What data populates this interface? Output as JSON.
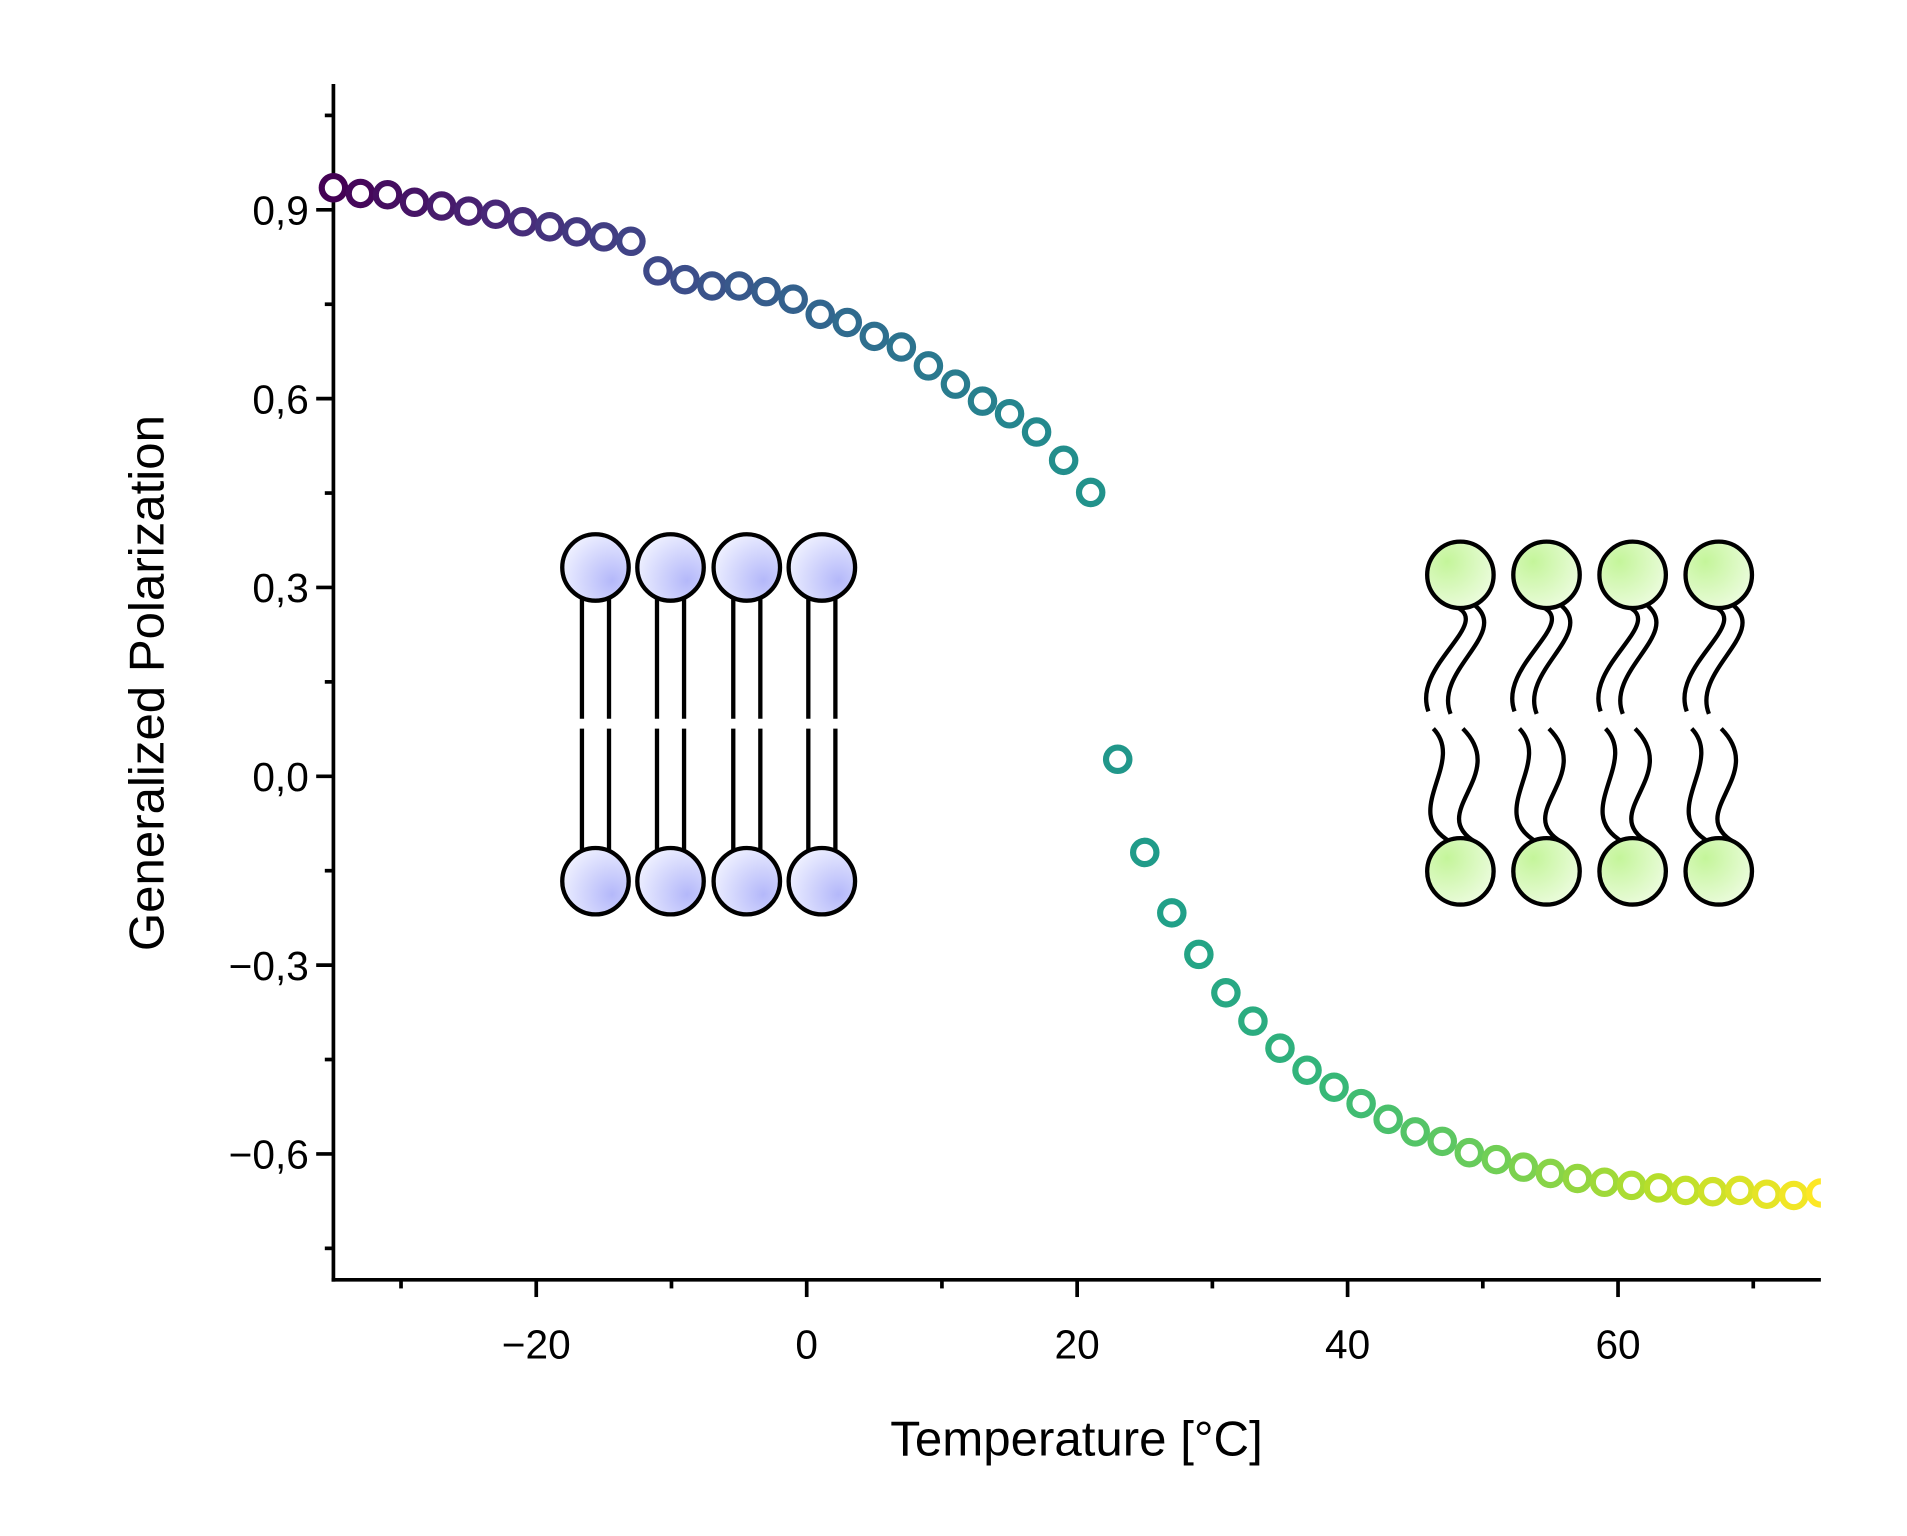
{
  "chart_data": {
    "type": "scatter",
    "title": "",
    "xlabel": "Temperature [°C]",
    "ylabel": "Generalized Polarization",
    "xlim": [
      -35,
      75
    ],
    "ylim": [
      -0.8,
      1.1
    ],
    "xticks": [
      -20,
      0,
      20,
      40,
      60
    ],
    "xtick_labels": [
      "−20",
      "0",
      "20",
      "40",
      "60"
    ],
    "yticks": [
      0.9,
      0.6,
      0.3,
      0.0,
      -0.3,
      -0.6
    ],
    "ytick_labels": [
      "0,9",
      "0,6",
      "0,3",
      "0,0",
      "−0,3",
      "−0,6"
    ],
    "grid": false,
    "marker": "open-circle",
    "colormap": "viridis",
    "x": [
      -35,
      -33,
      -31,
      -29,
      -27,
      -25,
      -23,
      -21,
      -19,
      -17,
      -15,
      -13,
      -11,
      -9,
      -7,
      -5,
      -3,
      -1,
      1,
      3,
      5,
      7,
      9,
      11,
      13,
      15,
      17,
      19,
      21,
      23,
      25,
      27,
      29,
      31,
      33,
      35,
      37,
      39,
      41,
      43,
      45,
      47,
      49,
      51,
      53,
      55,
      57,
      59,
      61,
      63,
      65,
      67,
      69,
      71,
      73,
      75
    ],
    "y": [
      0.935,
      0.926,
      0.924,
      0.912,
      0.906,
      0.898,
      0.893,
      0.881,
      0.873,
      0.865,
      0.857,
      0.85,
      0.803,
      0.789,
      0.779,
      0.779,
      0.77,
      0.758,
      0.734,
      0.721,
      0.699,
      0.682,
      0.652,
      0.623,
      0.596,
      0.576,
      0.547,
      0.502,
      0.451,
      0.027,
      -0.121,
      -0.217,
      -0.283,
      -0.344,
      -0.389,
      -0.432,
      -0.467,
      -0.494,
      -0.52,
      -0.545,
      -0.565,
      -0.58,
      -0.598,
      -0.609,
      -0.621,
      -0.631,
      -0.639,
      -0.645,
      -0.65,
      -0.654,
      -0.658,
      -0.66,
      -0.658,
      -0.664,
      -0.666,
      -0.662
    ]
  },
  "illustrations": {
    "gel_phase_membrane": {
      "head_color": "#c5c8ff"
    },
    "fluid_phase_membrane": {
      "head_color": "#c8f5a0"
    }
  }
}
